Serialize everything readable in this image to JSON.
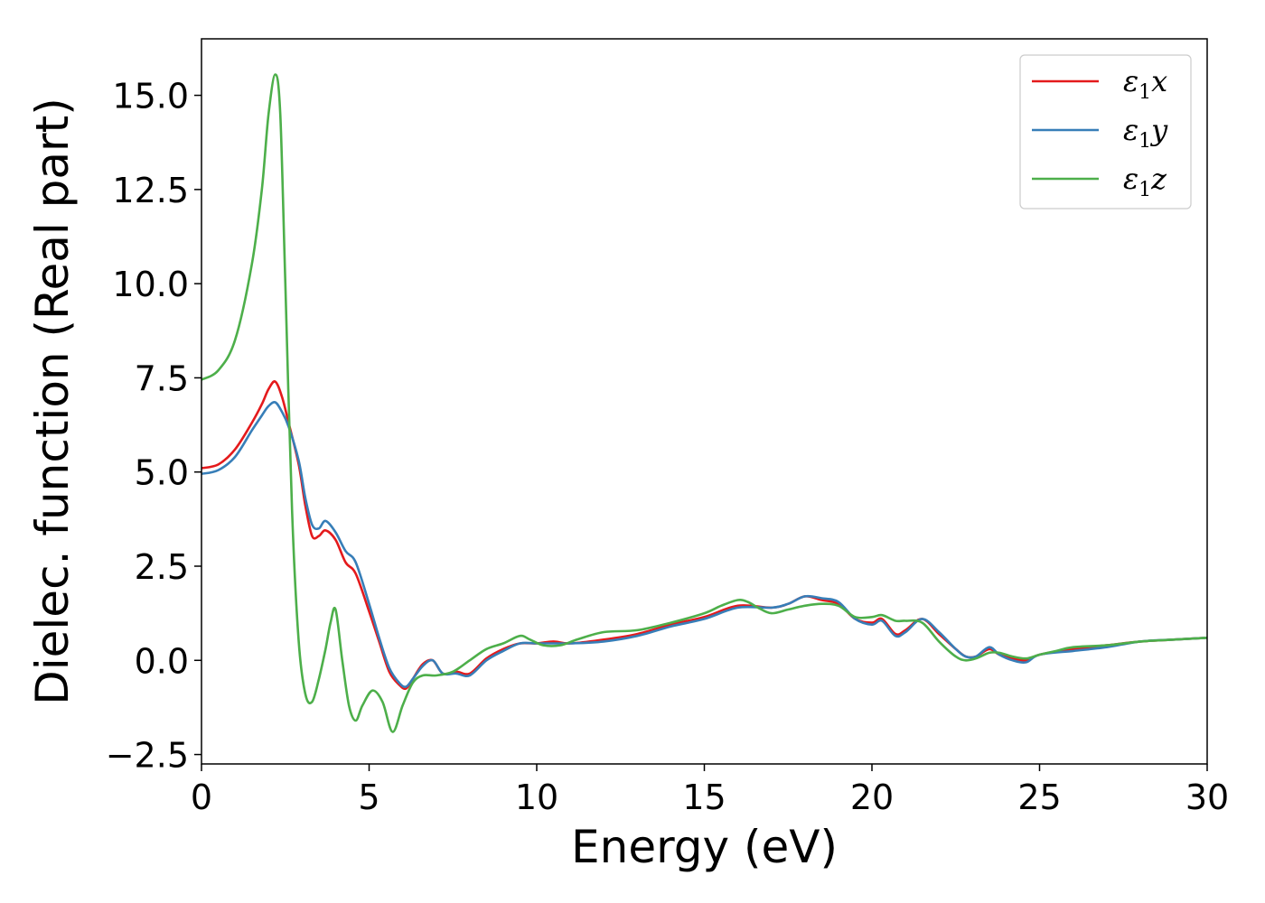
{
  "chart_data": {
    "type": "line",
    "xlabel": "Energy (eV)",
    "ylabel": "Dielec. function (Real part)",
    "xlim": [
      0,
      30
    ],
    "ylim": [
      -2.75,
      16.5
    ],
    "xticks": [
      0,
      5,
      10,
      15,
      20,
      25,
      30
    ],
    "xtick_labels": [
      "0",
      "5",
      "10",
      "15",
      "20",
      "25",
      "30"
    ],
    "yticks": [
      -2.5,
      0.0,
      2.5,
      5.0,
      7.5,
      10.0,
      12.5,
      15.0
    ],
    "ytick_labels": [
      "−2.5",
      "0.0",
      "2.5",
      "5.0",
      "7.5",
      "10.0",
      "12.5",
      "15.0"
    ],
    "grid": false,
    "legend_position": "top-right",
    "series": [
      {
        "name": "ε1x",
        "legend_base": "ε",
        "legend_sub": "1",
        "legend_tail": "x",
        "color": "#e41a1c",
        "x": [
          0,
          0.5,
          1.0,
          1.5,
          1.8,
          2.0,
          2.2,
          2.4,
          2.6,
          2.9,
          3.1,
          3.3,
          3.5,
          3.7,
          4.0,
          4.3,
          4.6,
          5.0,
          5.3,
          5.6,
          5.9,
          6.1,
          6.3,
          6.6,
          6.9,
          7.2,
          7.6,
          8.0,
          8.5,
          9.0,
          9.5,
          10.0,
          10.5,
          11.0,
          12.0,
          13.0,
          14.0,
          15.0,
          16.0,
          17.0,
          17.5,
          18.0,
          18.5,
          19.0,
          19.5,
          20.0,
          20.3,
          20.7,
          21.0,
          21.5,
          22.0,
          22.5,
          22.8,
          23.1,
          23.5,
          23.8,
          24.2,
          24.6,
          25.0,
          26.0,
          27.0,
          28.0,
          29.0,
          30.0
        ],
        "y": [
          5.1,
          5.2,
          5.6,
          6.3,
          6.8,
          7.2,
          7.4,
          7.0,
          6.3,
          5.2,
          4.1,
          3.3,
          3.3,
          3.45,
          3.2,
          2.6,
          2.3,
          1.3,
          0.5,
          -0.3,
          -0.65,
          -0.75,
          -0.5,
          -0.1,
          0.0,
          -0.35,
          -0.3,
          -0.35,
          0.05,
          0.3,
          0.45,
          0.45,
          0.5,
          0.45,
          0.55,
          0.7,
          0.95,
          1.15,
          1.45,
          1.4,
          1.5,
          1.7,
          1.6,
          1.5,
          1.1,
          1.0,
          1.1,
          0.7,
          0.8,
          1.1,
          0.7,
          0.3,
          0.1,
          0.1,
          0.3,
          0.15,
          0.05,
          0.0,
          0.15,
          0.3,
          0.4,
          0.5,
          0.55,
          0.6
        ]
      },
      {
        "name": "ε1y",
        "legend_base": "ε",
        "legend_sub": "1",
        "legend_tail": "y",
        "color": "#377eb8",
        "x": [
          0,
          0.5,
          1.0,
          1.5,
          1.8,
          2.0,
          2.2,
          2.4,
          2.6,
          2.9,
          3.1,
          3.3,
          3.5,
          3.7,
          4.0,
          4.3,
          4.6,
          5.0,
          5.3,
          5.6,
          5.9,
          6.1,
          6.3,
          6.6,
          6.9,
          7.2,
          7.6,
          8.0,
          8.5,
          9.0,
          9.5,
          10.0,
          10.5,
          11.0,
          12.0,
          13.0,
          14.0,
          15.0,
          16.0,
          17.0,
          17.5,
          18.0,
          18.5,
          19.0,
          19.5,
          20.0,
          20.3,
          20.7,
          21.0,
          21.5,
          22.0,
          22.5,
          22.8,
          23.1,
          23.5,
          23.8,
          24.2,
          24.6,
          25.0,
          26.0,
          27.0,
          28.0,
          29.0,
          30.0
        ],
        "y": [
          4.95,
          5.05,
          5.4,
          6.1,
          6.5,
          6.75,
          6.85,
          6.6,
          6.2,
          5.3,
          4.3,
          3.6,
          3.5,
          3.7,
          3.4,
          2.9,
          2.6,
          1.5,
          0.6,
          -0.2,
          -0.6,
          -0.7,
          -0.5,
          -0.15,
          0.0,
          -0.35,
          -0.35,
          -0.4,
          0.0,
          0.25,
          0.45,
          0.45,
          0.45,
          0.45,
          0.5,
          0.65,
          0.9,
          1.1,
          1.4,
          1.4,
          1.5,
          1.7,
          1.65,
          1.55,
          1.1,
          0.95,
          1.05,
          0.65,
          0.75,
          1.1,
          0.75,
          0.3,
          0.1,
          0.1,
          0.35,
          0.15,
          0.0,
          -0.05,
          0.15,
          0.25,
          0.35,
          0.5,
          0.55,
          0.6
        ]
      },
      {
        "name": "ε1z",
        "legend_base": "ε",
        "legend_sub": "1",
        "legend_tail": "z",
        "color": "#4daf4a",
        "x": [
          0,
          0.5,
          1.0,
          1.5,
          1.8,
          2.0,
          2.2,
          2.35,
          2.5,
          2.7,
          2.9,
          3.1,
          3.3,
          3.5,
          3.7,
          3.85,
          4.0,
          4.2,
          4.4,
          4.6,
          4.8,
          5.1,
          5.4,
          5.7,
          6.0,
          6.3,
          6.6,
          7.0,
          7.5,
          8.0,
          8.5,
          9.0,
          9.5,
          9.8,
          10.2,
          10.7,
          11.2,
          12.0,
          13.0,
          14.0,
          15.0,
          15.5,
          16.0,
          16.3,
          16.6,
          17.0,
          17.5,
          18.0,
          18.5,
          19.0,
          19.5,
          20.0,
          20.3,
          20.7,
          21.0,
          21.5,
          22.0,
          22.5,
          22.8,
          23.1,
          23.5,
          23.8,
          24.2,
          24.6,
          25.0,
          25.5,
          26.0,
          27.0,
          28.0,
          29.0,
          30.0
        ],
        "y": [
          7.45,
          7.7,
          8.5,
          10.5,
          12.5,
          14.5,
          15.55,
          14.5,
          10.0,
          4.0,
          0.5,
          -0.9,
          -1.1,
          -0.5,
          0.3,
          1.0,
          1.35,
          0.0,
          -1.2,
          -1.6,
          -1.2,
          -0.8,
          -1.1,
          -1.9,
          -1.2,
          -0.6,
          -0.4,
          -0.4,
          -0.3,
          0.0,
          0.3,
          0.45,
          0.65,
          0.55,
          0.4,
          0.4,
          0.55,
          0.75,
          0.8,
          1.0,
          1.25,
          1.45,
          1.6,
          1.55,
          1.4,
          1.25,
          1.35,
          1.45,
          1.5,
          1.45,
          1.15,
          1.15,
          1.2,
          1.05,
          1.05,
          1.0,
          0.5,
          0.1,
          0.0,
          0.05,
          0.2,
          0.2,
          0.1,
          0.05,
          0.15,
          0.25,
          0.35,
          0.4,
          0.5,
          0.55,
          0.6
        ]
      }
    ]
  }
}
